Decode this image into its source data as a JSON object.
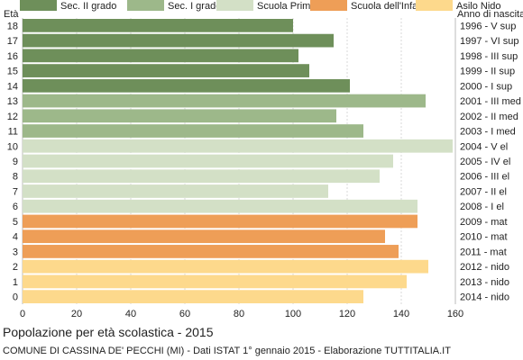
{
  "chart_data": {
    "type": "bar",
    "orientation": "horizontal",
    "title": "Popolazione per età scolastica - 2015",
    "source": "COMUNE DI CASSINA DE' PECCHI (MI) - Dati ISTAT 1° gennaio 2015 - Elaborazione TUTTITALIA.IT",
    "ylabel_left": "Età",
    "ylabel_right": "Anno di nascita",
    "xlim": [
      0,
      160
    ],
    "xticks": [
      0,
      20,
      40,
      60,
      80,
      100,
      120,
      140,
      160
    ],
    "grid": true,
    "legend_position": "top",
    "legend": [
      {
        "name": "Sec. II grado",
        "color": "#6e8f5a"
      },
      {
        "name": "Sec. I grado",
        "color": "#9db88a"
      },
      {
        "name": "Scuola Primaria",
        "color": "#d3e0c6"
      },
      {
        "name": "Scuola dell'Infanzia",
        "color": "#ee9e57"
      },
      {
        "name": "Asilo Nido",
        "color": "#fdd98c"
      }
    ],
    "rows": [
      {
        "age": "18",
        "birth": "1996 - V sup",
        "value": 100,
        "group": 0
      },
      {
        "age": "17",
        "birth": "1997 - VI sup",
        "value": 115,
        "group": 0
      },
      {
        "age": "16",
        "birth": "1998 - III sup",
        "value": 102,
        "group": 0
      },
      {
        "age": "15",
        "birth": "1999 - II sup",
        "value": 106,
        "group": 0
      },
      {
        "age": "14",
        "birth": "2000 - I sup",
        "value": 121,
        "group": 0
      },
      {
        "age": "13",
        "birth": "2001 - III med",
        "value": 149,
        "group": 1
      },
      {
        "age": "12",
        "birth": "2002 - II med",
        "value": 116,
        "group": 1
      },
      {
        "age": "11",
        "birth": "2003 - I med",
        "value": 126,
        "group": 1
      },
      {
        "age": "10",
        "birth": "2004 - V el",
        "value": 159,
        "group": 2
      },
      {
        "age": "9",
        "birth": "2005 - IV el",
        "value": 137,
        "group": 2
      },
      {
        "age": "8",
        "birth": "2006 - III el",
        "value": 132,
        "group": 2
      },
      {
        "age": "7",
        "birth": "2007 - II el",
        "value": 113,
        "group": 2
      },
      {
        "age": "6",
        "birth": "2008 - I el",
        "value": 146,
        "group": 2
      },
      {
        "age": "5",
        "birth": "2009 - mat",
        "value": 146,
        "group": 3
      },
      {
        "age": "4",
        "birth": "2010 - mat",
        "value": 134,
        "group": 3
      },
      {
        "age": "3",
        "birth": "2011 - mat",
        "value": 139,
        "group": 3
      },
      {
        "age": "2",
        "birth": "2012 - nido",
        "value": 150,
        "group": 4
      },
      {
        "age": "1",
        "birth": "2013 - nido",
        "value": 142,
        "group": 4
      },
      {
        "age": "0",
        "birth": "2014 - nido",
        "value": 126,
        "group": 4
      }
    ]
  }
}
